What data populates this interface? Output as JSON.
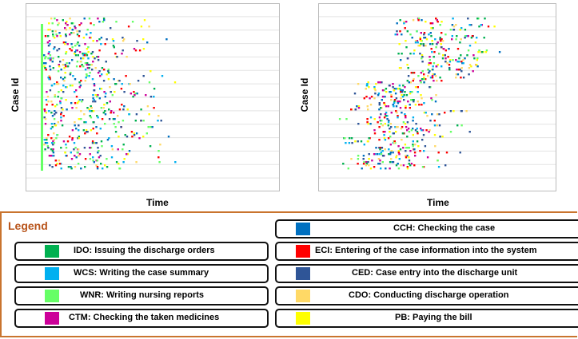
{
  "chart_data": [
    {
      "type": "scatter",
      "title": "",
      "xlabel": "Time",
      "ylabel": "Case Id",
      "grid": true,
      "notes": "Dotted chart of process events; points colored by activity"
    },
    {
      "type": "scatter",
      "title": "",
      "xlabel": "Time",
      "ylabel": "Case Id",
      "grid": true,
      "notes": "Dotted chart of process events; points colored by activity"
    }
  ],
  "legend": {
    "title": "Legend",
    "items": [
      {
        "code": "IDO",
        "label": "IDO: Issuing the discharge orders",
        "color": "#00b050"
      },
      {
        "code": "WCS",
        "label": "WCS: Writing the case summary",
        "color": "#00b0f0"
      },
      {
        "code": "WNR",
        "label": "WNR: Writing nursing reports",
        "color": "#66ff66"
      },
      {
        "code": "CTM",
        "label": "CTM: Checking the taken medicines",
        "color": "#cc0099"
      },
      {
        "code": "CCH",
        "label": "CCH: Checking the case",
        "color": "#0070c0"
      },
      {
        "code": "ECI",
        "label": "ECI: Entering of the case information into the system",
        "color": "#ff0000"
      },
      {
        "code": "CED",
        "label": "CED: Case entry into the discharge unit",
        "color": "#2f5597"
      },
      {
        "code": "CDO",
        "label": "CDO: Conducting discharge operation",
        "color": "#ffd966"
      },
      {
        "code": "PB",
        "label": "PB: Paying the bill",
        "color": "#ffff00"
      }
    ]
  }
}
